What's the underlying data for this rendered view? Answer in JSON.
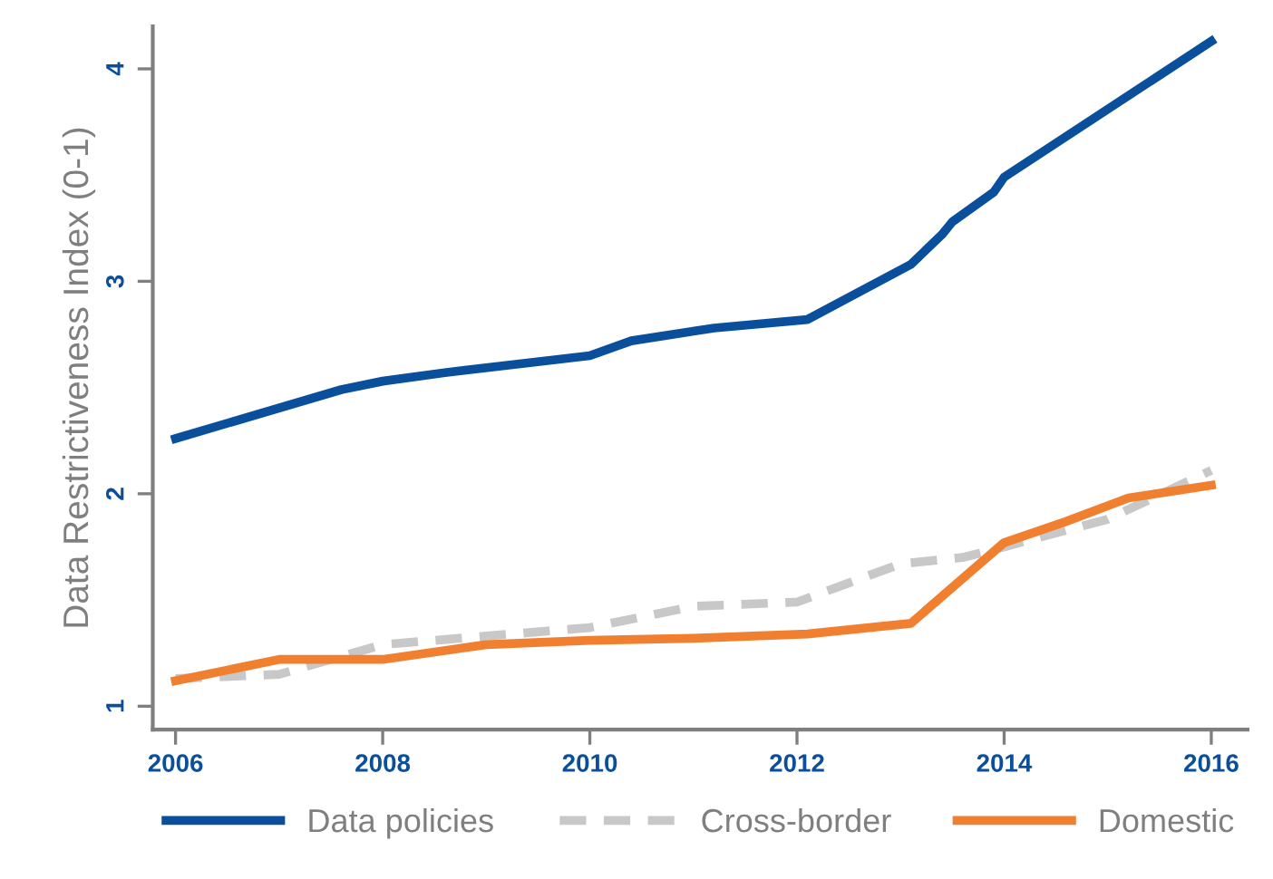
{
  "chart_data": {
    "type": "line",
    "ylabel": "Data Restrictiveness Index (0-1)",
    "xlim": [
      2005.78,
      2016.35
    ],
    "xticks": [
      2006,
      2008,
      2010,
      2012,
      2014,
      2016
    ],
    "ylim": [
      0.89,
      4.2
    ],
    "yticks": [
      1,
      2,
      3,
      4
    ],
    "grid": false,
    "legend": "bottom",
    "line_style": "solid",
    "series": [
      {
        "name": "Data policies",
        "color": "#0a4f9c",
        "x": [
          2006,
          2007.6,
          2008,
          2008.6,
          2010,
          2010.4,
          2011.2,
          2012.1,
          2013.1,
          2013.4,
          2013.5,
          2013.9,
          2014,
          2016
        ],
        "values": [
          2.26,
          2.49,
          2.53,
          2.57,
          2.65,
          2.72,
          2.78,
          2.82,
          3.08,
          3.22,
          3.28,
          3.42,
          3.49,
          4.13
        ]
      },
      {
        "name": "Cross-border",
        "color": "#c8c8c8",
        "line_style": "dashed",
        "x": [
          2006,
          2007,
          2008,
          2009,
          2010,
          2010.5,
          2011,
          2012,
          2013,
          2013.6,
          2014,
          2015,
          2016
        ],
        "values": [
          1.13,
          1.15,
          1.29,
          1.33,
          1.37,
          1.42,
          1.47,
          1.49,
          1.67,
          1.7,
          1.75,
          1.88,
          2.11
        ]
      },
      {
        "name": "Domestic",
        "color": "#f07f2f",
        "x": [
          2006,
          2007,
          2008,
          2009,
          2010,
          2011,
          2012.1,
          2013.1,
          2014,
          2014.6,
          2015.2,
          2016
        ],
        "values": [
          1.12,
          1.22,
          1.22,
          1.29,
          1.31,
          1.32,
          1.34,
          1.39,
          1.77,
          1.87,
          1.98,
          2.04
        ]
      }
    ]
  }
}
